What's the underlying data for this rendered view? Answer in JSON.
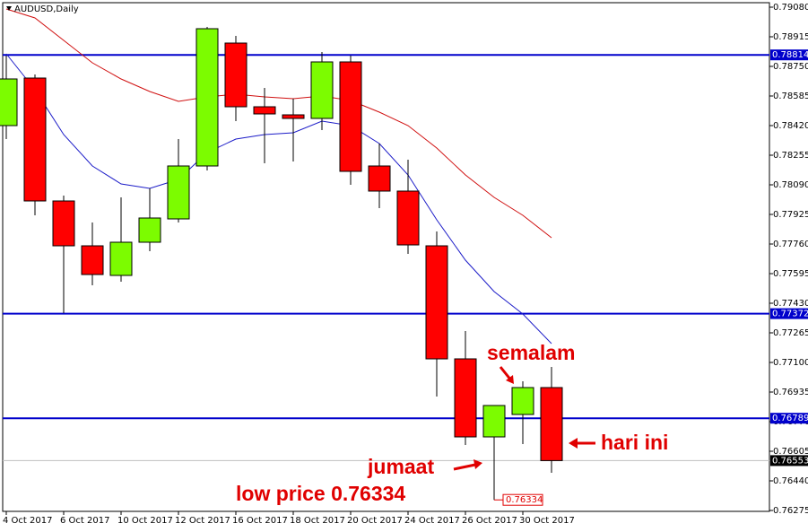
{
  "chart_data": {
    "type": "candlestick",
    "title": "AUDUSD,Daily",
    "categories": [
      "4 Oct 2017",
      null,
      "6 Oct 2017",
      null,
      "10 Oct 2017",
      null,
      "12 Oct 2017",
      null,
      "16 Oct 2017",
      null,
      "18 Oct 2017",
      null,
      "20 Oct 2017",
      null,
      "24 Oct 2017",
      null,
      "26 Oct 2017",
      null,
      "30 Oct 2017",
      null
    ],
    "open": [
      0.7842,
      0.78685,
      0.78,
      0.7775,
      0.77585,
      0.7777,
      0.779,
      0.78195,
      0.7888,
      0.78525,
      0.7848,
      0.7846,
      0.78775,
      0.78195,
      0.78055,
      0.7775,
      0.7712,
      0.76685,
      0.7681,
      0.7696
    ],
    "high": [
      0.7881,
      0.78705,
      0.7803,
      0.7788,
      0.7802,
      0.7807,
      0.78345,
      0.7897,
      0.7892,
      0.7863,
      0.7857,
      0.7883,
      0.7881,
      0.7832,
      0.7823,
      0.7783,
      0.77275,
      0.7686,
      0.76995,
      0.77075
    ],
    "low": [
      0.78345,
      0.7792,
      0.77375,
      0.7753,
      0.7755,
      0.7772,
      0.7788,
      0.7817,
      0.78445,
      0.7821,
      0.7822,
      0.78395,
      0.7809,
      0.7796,
      0.77705,
      0.7691,
      0.7664,
      0.76334,
      0.76645,
      0.76485
    ],
    "close": [
      0.7868,
      0.78,
      0.7775,
      0.7759,
      0.7777,
      0.77905,
      0.78195,
      0.7896,
      0.78525,
      0.78485,
      0.7846,
      0.78775,
      0.78165,
      0.78055,
      0.77755,
      0.7712,
      0.76685,
      0.7686,
      0.7696,
      0.76553
    ],
    "up_color": "#7cfc00",
    "down_color": "#ff0000",
    "lines": [
      {
        "color": "#1c1cc8",
        "values": [
          0.7882,
          0.7862,
          0.7837,
          0.78195,
          0.78095,
          0.7807,
          0.7812,
          0.7827,
          0.78345,
          0.7837,
          0.7838,
          0.78445,
          0.7842,
          0.7832,
          0.78145,
          0.77895,
          0.7767,
          0.77495,
          0.7737,
          0.77205
        ]
      },
      {
        "color": "#d01010",
        "values": [
          0.7907,
          0.7902,
          0.78895,
          0.7877,
          0.7868,
          0.7861,
          0.78555,
          0.7858,
          0.78595,
          0.7858,
          0.7857,
          0.78585,
          0.7856,
          0.78495,
          0.7842,
          0.78295,
          0.78145,
          0.7802,
          0.7792,
          0.77795
        ]
      }
    ],
    "hlines": [
      {
        "value": 0.78814,
        "color": "#0000cc"
      },
      {
        "value": 0.77372,
        "color": "#0000cc"
      },
      {
        "value": 0.76789,
        "color": "#0000cc"
      },
      {
        "value": 0.76553,
        "color": "#c0c0c0"
      }
    ],
    "ylim": [
      0.7627,
      0.79105
    ],
    "yticks": [
      {
        "value": 0.7908,
        "label": "0.79080"
      },
      0.78915,
      {
        "value": 0.7875,
        "label": "0.78750"
      },
      0.78585,
      {
        "value": 0.7842,
        "label": "0.78420"
      },
      0.78255,
      {
        "value": 0.7809,
        "label": "0.78090"
      },
      0.77925,
      {
        "value": 0.7776,
        "label": "0.77760"
      },
      0.77595,
      {
        "value": 0.7743,
        "label": "0.77430"
      },
      0.77265,
      {
        "value": 0.771,
        "label": "0.77100"
      },
      0.76935,
      {
        "value": 0.7677,
        "label": "0.76770"
      },
      0.76605,
      {
        "value": 0.7644,
        "label": "0.76440"
      },
      0.76275
    ],
    "annotations": [
      "semalam",
      "hari ini",
      "jumaat",
      "low price 0.76334"
    ]
  }
}
